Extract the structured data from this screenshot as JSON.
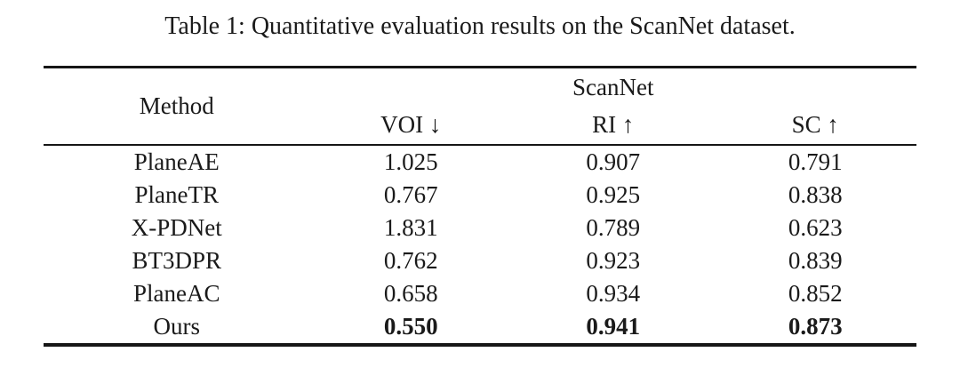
{
  "caption": "Table 1: Quantitative evaluation results on the ScanNet dataset.",
  "table": {
    "method_header": "Method",
    "group_header": "ScanNet",
    "metric_headers": [
      "VOI ↓",
      "RI ↑",
      "SC ↑"
    ],
    "rows": [
      {
        "method": "PlaneAE",
        "voi": "1.025",
        "ri": "0.907",
        "sc": "0.791"
      },
      {
        "method": "PlaneTR",
        "voi": "0.767",
        "ri": "0.925",
        "sc": "0.838"
      },
      {
        "method": "X-PDNet",
        "voi": "1.831",
        "ri": "0.789",
        "sc": "0.623"
      },
      {
        "method": "BT3DPR",
        "voi": "0.762",
        "ri": "0.923",
        "sc": "0.839"
      },
      {
        "method": "PlaneAC",
        "voi": "0.658",
        "ri": "0.934",
        "sc": "0.852"
      },
      {
        "method": "Ours",
        "voi": "0.550",
        "ri": "0.941",
        "sc": "0.873"
      }
    ],
    "best_row_index": 5
  },
  "colors": {
    "text": "#1a1a1a",
    "rule": "#161616",
    "background": "#ffffff"
  }
}
